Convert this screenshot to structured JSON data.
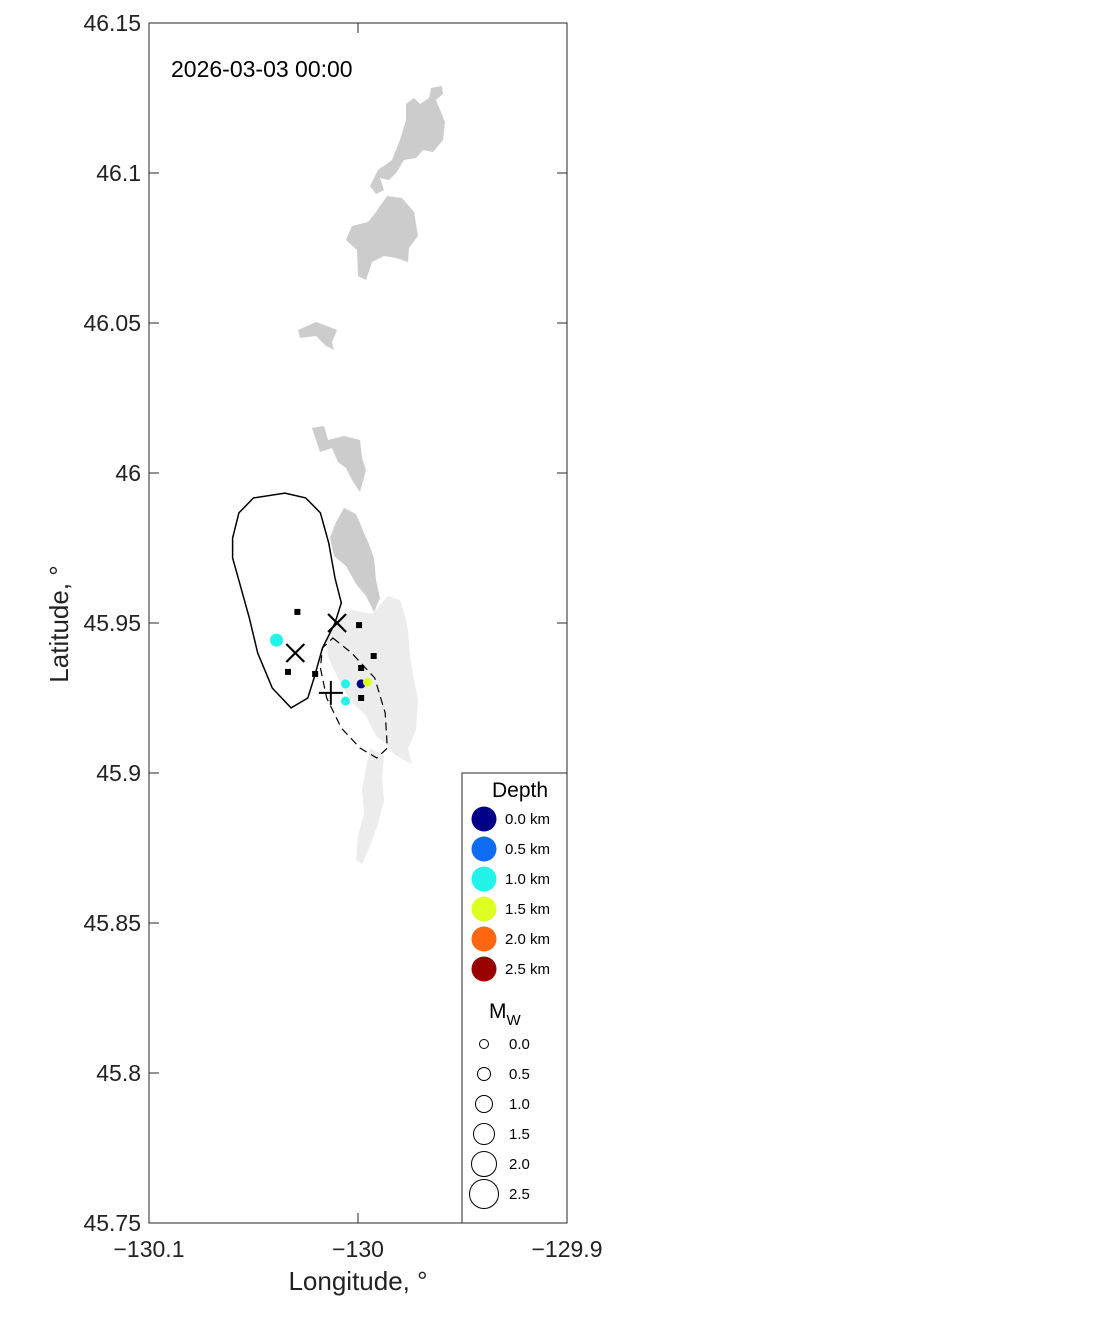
{
  "timestamp": "2026-03-03 00:00",
  "axes": {
    "xlabel": "Longitude, °",
    "ylabel": "Latitude, °",
    "xlim": [
      -130.1,
      -129.9
    ],
    "ylim": [
      45.75,
      46.15
    ],
    "xticks": [
      {
        "value": -130.1,
        "label": "−130.1"
      },
      {
        "value": -130.0,
        "label": "−130"
      },
      {
        "value": -129.9,
        "label": "−129.9"
      }
    ],
    "yticks": [
      {
        "value": 45.75,
        "label": "45.75"
      },
      {
        "value": 45.8,
        "label": "45.8"
      },
      {
        "value": 45.85,
        "label": "45.85"
      },
      {
        "value": 45.9,
        "label": "45.9"
      },
      {
        "value": 45.95,
        "label": "45.95"
      },
      {
        "value": 46.0,
        "label": "46"
      },
      {
        "value": 46.05,
        "label": "46.05"
      },
      {
        "value": 46.1,
        "label": "46.1"
      },
      {
        "value": 46.15,
        "label": "46.15"
      }
    ]
  },
  "chart_data": {
    "type": "scatter",
    "title": "2026-03-03 00:00",
    "xlabel": "Longitude, °",
    "ylabel": "Latitude, °",
    "xlim": [
      -130.1,
      -129.9
    ],
    "ylim": [
      45.75,
      46.15
    ],
    "grid": false,
    "legend_position": "bottom-right",
    "caldera_outline": [
      [
        -130.035,
        45.9933
      ],
      [
        -130.025,
        45.9917
      ],
      [
        -130.018,
        45.9867
      ],
      [
        -130.014,
        45.9767
      ],
      [
        -130.011,
        45.965
      ],
      [
        -130.008,
        45.9567
      ],
      [
        -130.011,
        45.95
      ],
      [
        -130.017,
        45.9417
      ],
      [
        -130.021,
        45.9317
      ],
      [
        -130.024,
        45.925
      ],
      [
        -130.032,
        45.9217
      ],
      [
        -130.041,
        45.9283
      ],
      [
        -130.048,
        45.94
      ],
      [
        -130.052,
        45.9517
      ],
      [
        -130.056,
        45.9617
      ],
      [
        -130.06,
        45.9717
      ],
      [
        -130.06,
        45.9783
      ],
      [
        -130.057,
        45.9867
      ],
      [
        -130.05,
        45.9917
      ]
    ],
    "eruption_outline": [
      [
        -130.012,
        45.945
      ],
      [
        -130.003,
        45.94
      ],
      [
        -129.992,
        45.9317
      ],
      [
        -129.987,
        45.92
      ],
      [
        -129.986,
        45.9083
      ],
      [
        -129.991,
        45.905
      ],
      [
        -129.999,
        45.9083
      ],
      [
        -130.008,
        45.915
      ],
      [
        -130.015,
        45.925
      ],
      [
        -130.018,
        45.935
      ],
      [
        -130.017,
        45.9417
      ]
    ],
    "x_markers": [
      {
        "lon": -130.01,
        "lat": 45.95
      },
      {
        "lon": -130.03,
        "lat": 45.94
      }
    ],
    "plus_markers": [
      {
        "lon": -130.013,
        "lat": 45.9267
      }
    ],
    "square_markers": [
      {
        "lon": -130.029,
        "lat": 45.9537
      },
      {
        "lon": -129.9995,
        "lat": 45.9493
      },
      {
        "lon": -129.9925,
        "lat": 45.939
      },
      {
        "lon": -129.9985,
        "lat": 45.935
      },
      {
        "lon": -130.0335,
        "lat": 45.9337
      },
      {
        "lon": -130.0205,
        "lat": 45.933
      },
      {
        "lon": -129.9985,
        "lat": 45.925
      }
    ],
    "events": [
      {
        "lon": -130.039,
        "lat": 45.9443,
        "depth_km": 1.1,
        "mw": 0.5
      },
      {
        "lon": -130.006,
        "lat": 45.9297,
        "depth_km": 0.8,
        "mw": 0.0
      },
      {
        "lon": -129.9985,
        "lat": 45.9297,
        "depth_km": 0.2,
        "mw": 0.0
      },
      {
        "lon": -129.9955,
        "lat": 45.9303,
        "depth_km": 1.5,
        "mw": 0.0
      },
      {
        "lon": -130.006,
        "lat": 45.924,
        "depth_km": 1.1,
        "mw": 0.0
      }
    ],
    "depth_scale": [
      {
        "depth": 0.0,
        "label": "0.0 km",
        "color": "#000088"
      },
      {
        "depth": 0.5,
        "label": "0.5 km",
        "color": "#0f6cf2"
      },
      {
        "depth": 1.0,
        "label": "1.0 km",
        "color": "#22f2e8"
      },
      {
        "depth": 1.5,
        "label": "1.5 km",
        "color": "#ddff22"
      },
      {
        "depth": 2.0,
        "label": "2.0 km",
        "color": "#ff6610"
      },
      {
        "depth": 2.5,
        "label": "2.5 km",
        "color": "#990000"
      }
    ],
    "magnitude_scale": [
      {
        "mw": 0.0,
        "label": "0.0"
      },
      {
        "mw": 0.5,
        "label": "0.5"
      },
      {
        "mw": 1.0,
        "label": "1.0"
      },
      {
        "mw": 1.5,
        "label": "1.5"
      },
      {
        "mw": 2.0,
        "label": "2.0"
      },
      {
        "mw": 2.5,
        "label": "2.5"
      }
    ],
    "legend": {
      "depth_title": "Depth",
      "mag_title_main": "M",
      "mag_title_sub": "W"
    }
  },
  "colors": {
    "lava_old": "#cccccc",
    "lava_new": "#ececec",
    "outline": "#000000",
    "axes": "#262626"
  }
}
